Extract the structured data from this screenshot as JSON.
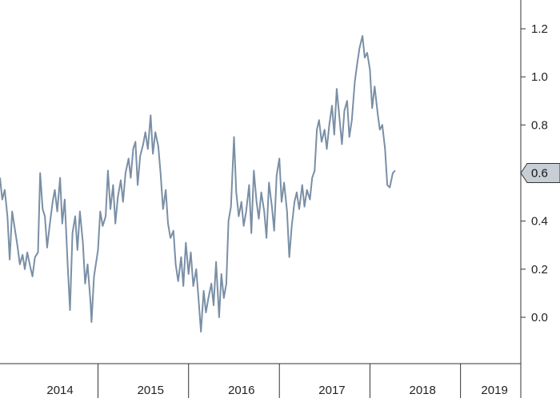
{
  "chart_data": {
    "type": "line",
    "title": "",
    "xlabel": "",
    "ylabel": "",
    "grid": false,
    "legend": "none",
    "ylim": [
      -0.18,
      1.3
    ],
    "xlim": [
      "2013-09-01",
      "2019-06-01"
    ],
    "y_ticks": [
      {
        "value": 1.2,
        "label": "1.2"
      },
      {
        "value": 1.0,
        "label": "1.0"
      },
      {
        "value": 0.8,
        "label": "0.8"
      },
      {
        "value": 0.6,
        "label": "0.6"
      },
      {
        "value": 0.4,
        "label": "0.4"
      },
      {
        "value": 0.2,
        "label": "0.2"
      },
      {
        "value": 0.0,
        "label": "0.0"
      }
    ],
    "x_tick_labels": [
      {
        "label": "2014",
        "x": "2014-05-01"
      },
      {
        "label": "2015",
        "x": "2015-05-01"
      },
      {
        "label": "2016",
        "x": "2016-05-01"
      },
      {
        "label": "2017",
        "x": "2017-05-01"
      },
      {
        "label": "2018",
        "x": "2018-05-01"
      },
      {
        "label": "2019",
        "x": "2019-02-15"
      }
    ],
    "x_dividers": [
      "2014-10-01",
      "2015-10-01",
      "2016-10-01",
      "2017-10-01",
      "2018-10-01"
    ],
    "current_value": {
      "value": 0.6,
      "label": "0.6"
    },
    "series": [
      {
        "color": "#7a8fa6",
        "points": [
          [
            "2013-09-01",
            0.58
          ],
          [
            "2013-09-10",
            0.49
          ],
          [
            "2013-09-20",
            0.53
          ],
          [
            "2013-10-01",
            0.42
          ],
          [
            "2013-10-10",
            0.24
          ],
          [
            "2013-10-20",
            0.44
          ],
          [
            "2013-11-01",
            0.36
          ],
          [
            "2013-11-10",
            0.3
          ],
          [
            "2013-11-20",
            0.22
          ],
          [
            "2013-12-01",
            0.26
          ],
          [
            "2013-12-10",
            0.2
          ],
          [
            "2013-12-20",
            0.27
          ],
          [
            "2014-01-01",
            0.21
          ],
          [
            "2014-01-10",
            0.17
          ],
          [
            "2014-01-20",
            0.25
          ],
          [
            "2014-02-01",
            0.27
          ],
          [
            "2014-02-10",
            0.6
          ],
          [
            "2014-02-20",
            0.45
          ],
          [
            "2014-03-01",
            0.42
          ],
          [
            "2014-03-10",
            0.29
          ],
          [
            "2014-03-20",
            0.38
          ],
          [
            "2014-04-01",
            0.48
          ],
          [
            "2014-04-10",
            0.53
          ],
          [
            "2014-04-20",
            0.44
          ],
          [
            "2014-05-01",
            0.58
          ],
          [
            "2014-05-10",
            0.39
          ],
          [
            "2014-05-20",
            0.49
          ],
          [
            "2014-06-01",
            0.21
          ],
          [
            "2014-06-10",
            0.03
          ],
          [
            "2014-06-20",
            0.35
          ],
          [
            "2014-07-01",
            0.42
          ],
          [
            "2014-07-10",
            0.28
          ],
          [
            "2014-07-20",
            0.44
          ],
          [
            "2014-08-01",
            0.31
          ],
          [
            "2014-08-10",
            0.14
          ],
          [
            "2014-08-20",
            0.22
          ],
          [
            "2014-09-01",
            0.06
          ],
          [
            "2014-09-05",
            -0.02
          ],
          [
            "2014-09-15",
            0.17
          ],
          [
            "2014-10-01",
            0.28
          ],
          [
            "2014-10-10",
            0.44
          ],
          [
            "2014-10-20",
            0.38
          ],
          [
            "2014-11-01",
            0.42
          ],
          [
            "2014-11-10",
            0.61
          ],
          [
            "2014-11-20",
            0.45
          ],
          [
            "2014-12-01",
            0.55
          ],
          [
            "2014-12-10",
            0.39
          ],
          [
            "2014-12-20",
            0.5
          ],
          [
            "2015-01-01",
            0.57
          ],
          [
            "2015-01-10",
            0.48
          ],
          [
            "2015-01-20",
            0.6
          ],
          [
            "2015-02-01",
            0.66
          ],
          [
            "2015-02-10",
            0.58
          ],
          [
            "2015-02-20",
            0.7
          ],
          [
            "2015-03-01",
            0.73
          ],
          [
            "2015-03-10",
            0.55
          ],
          [
            "2015-03-20",
            0.67
          ],
          [
            "2015-04-01",
            0.72
          ],
          [
            "2015-04-10",
            0.77
          ],
          [
            "2015-04-20",
            0.7
          ],
          [
            "2015-05-01",
            0.84
          ],
          [
            "2015-05-10",
            0.68
          ],
          [
            "2015-05-20",
            0.77
          ],
          [
            "2015-06-01",
            0.71
          ],
          [
            "2015-06-10",
            0.6
          ],
          [
            "2015-06-20",
            0.45
          ],
          [
            "2015-07-01",
            0.53
          ],
          [
            "2015-07-10",
            0.39
          ],
          [
            "2015-07-20",
            0.33
          ],
          [
            "2015-08-01",
            0.36
          ],
          [
            "2015-08-10",
            0.22
          ],
          [
            "2015-08-20",
            0.15
          ],
          [
            "2015-09-01",
            0.25
          ],
          [
            "2015-09-10",
            0.13
          ],
          [
            "2015-09-20",
            0.31
          ],
          [
            "2015-10-01",
            0.18
          ],
          [
            "2015-10-10",
            0.27
          ],
          [
            "2015-10-20",
            0.13
          ],
          [
            "2015-11-01",
            0.2
          ],
          [
            "2015-11-10",
            0.08
          ],
          [
            "2015-11-20",
            -0.06
          ],
          [
            "2015-12-01",
            0.11
          ],
          [
            "2015-12-10",
            0.02
          ],
          [
            "2015-12-20",
            0.08
          ],
          [
            "2016-01-01",
            0.14
          ],
          [
            "2016-01-10",
            0.05
          ],
          [
            "2016-01-20",
            0.23
          ],
          [
            "2016-02-01",
            0.0
          ],
          [
            "2016-02-10",
            0.18
          ],
          [
            "2016-02-20",
            0.08
          ],
          [
            "2016-03-01",
            0.14
          ],
          [
            "2016-03-10",
            0.4
          ],
          [
            "2016-03-20",
            0.46
          ],
          [
            "2016-04-01",
            0.75
          ],
          [
            "2016-04-10",
            0.52
          ],
          [
            "2016-04-20",
            0.42
          ],
          [
            "2016-05-01",
            0.48
          ],
          [
            "2016-05-10",
            0.38
          ],
          [
            "2016-05-20",
            0.44
          ],
          [
            "2016-06-01",
            0.55
          ],
          [
            "2016-06-10",
            0.35
          ],
          [
            "2016-06-20",
            0.61
          ],
          [
            "2016-07-01",
            0.48
          ],
          [
            "2016-07-10",
            0.41
          ],
          [
            "2016-07-20",
            0.52
          ],
          [
            "2016-08-01",
            0.44
          ],
          [
            "2016-08-10",
            0.33
          ],
          [
            "2016-08-20",
            0.56
          ],
          [
            "2016-09-01",
            0.46
          ],
          [
            "2016-09-10",
            0.36
          ],
          [
            "2016-09-20",
            0.59
          ],
          [
            "2016-10-01",
            0.66
          ],
          [
            "2016-10-10",
            0.48
          ],
          [
            "2016-10-20",
            0.56
          ],
          [
            "2016-11-01",
            0.44
          ],
          [
            "2016-11-10",
            0.25
          ],
          [
            "2016-11-20",
            0.38
          ],
          [
            "2016-12-01",
            0.48
          ],
          [
            "2016-12-10",
            0.52
          ],
          [
            "2016-12-20",
            0.45
          ],
          [
            "2017-01-01",
            0.55
          ],
          [
            "2017-01-10",
            0.46
          ],
          [
            "2017-01-20",
            0.53
          ],
          [
            "2017-02-01",
            0.49
          ],
          [
            "2017-02-10",
            0.58
          ],
          [
            "2017-02-20",
            0.61
          ],
          [
            "2017-03-01",
            0.78
          ],
          [
            "2017-03-10",
            0.82
          ],
          [
            "2017-03-20",
            0.73
          ],
          [
            "2017-04-01",
            0.78
          ],
          [
            "2017-04-10",
            0.7
          ],
          [
            "2017-04-20",
            0.8
          ],
          [
            "2017-05-01",
            0.88
          ],
          [
            "2017-05-10",
            0.76
          ],
          [
            "2017-05-20",
            0.95
          ],
          [
            "2017-06-01",
            0.82
          ],
          [
            "2017-06-10",
            0.72
          ],
          [
            "2017-06-20",
            0.86
          ],
          [
            "2017-07-01",
            0.9
          ],
          [
            "2017-07-10",
            0.75
          ],
          [
            "2017-07-20",
            0.82
          ],
          [
            "2017-08-01",
            0.98
          ],
          [
            "2017-08-10",
            1.05
          ],
          [
            "2017-08-20",
            1.12
          ],
          [
            "2017-09-01",
            1.17
          ],
          [
            "2017-09-10",
            1.08
          ],
          [
            "2017-09-20",
            1.1
          ],
          [
            "2017-10-01",
            1.03
          ],
          [
            "2017-10-10",
            0.87
          ],
          [
            "2017-10-20",
            0.96
          ],
          [
            "2017-11-01",
            0.85
          ],
          [
            "2017-11-10",
            0.78
          ],
          [
            "2017-11-20",
            0.8
          ],
          [
            "2017-12-01",
            0.7
          ],
          [
            "2017-12-10",
            0.55
          ],
          [
            "2017-12-20",
            0.54
          ],
          [
            "2018-01-01",
            0.6
          ],
          [
            "2018-01-10",
            0.61
          ]
        ]
      }
    ]
  }
}
